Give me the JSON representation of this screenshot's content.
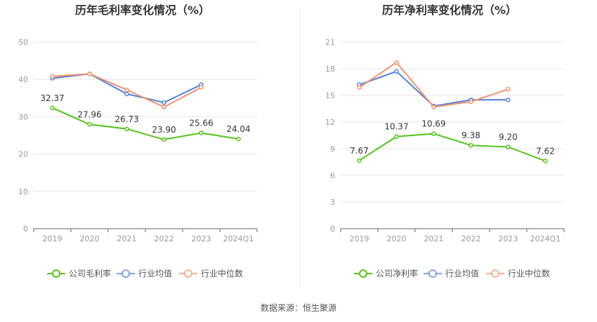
{
  "source_note": "数据来源：恒生聚源",
  "chart_data": [
    {
      "type": "line",
      "title": "历年毛利率变化情况（%）",
      "categories": [
        "2019",
        "2020",
        "2021",
        "2022",
        "2023",
        "2024Q1"
      ],
      "ylim": [
        0,
        50
      ],
      "yticks": [
        0,
        10,
        20,
        30,
        40,
        50
      ],
      "grid": true,
      "legend_position": "bottom",
      "series": [
        {
          "name": "公司毛利率",
          "color": "#52c41a",
          "values": [
            32.37,
            27.96,
            26.73,
            23.9,
            25.66,
            24.04
          ],
          "labels": [
            "32.37",
            "27.96",
            "26.73",
            "23.90",
            "25.66",
            "24.04"
          ]
        },
        {
          "name": "行业均值",
          "color": "#4f7fd8",
          "values": [
            40.3,
            41.5,
            36.1,
            33.8,
            38.6,
            null
          ]
        },
        {
          "name": "行业中位数",
          "color": "#f4916a",
          "values": [
            40.8,
            41.5,
            37.2,
            32.6,
            37.9,
            null
          ]
        }
      ]
    },
    {
      "type": "line",
      "title": "历年净利率变化情况（%）",
      "categories": [
        "2019",
        "2020",
        "2021",
        "2022",
        "2023",
        "2024Q1"
      ],
      "ylim": [
        0,
        21
      ],
      "yticks": [
        0,
        3,
        6,
        9,
        12,
        15,
        18,
        21
      ],
      "grid": true,
      "legend_position": "bottom",
      "series": [
        {
          "name": "公司净利率",
          "color": "#52c41a",
          "values": [
            7.67,
            10.37,
            10.69,
            9.38,
            9.2,
            7.62
          ],
          "labels": [
            "7.67",
            "10.37",
            "10.69",
            "9.38",
            "9.20",
            "7.62"
          ]
        },
        {
          "name": "行业均值",
          "color": "#4f7fd8",
          "values": [
            16.2,
            17.7,
            13.8,
            14.5,
            14.5,
            null
          ]
        },
        {
          "name": "行业中位数",
          "color": "#f4916a",
          "values": [
            15.9,
            18.7,
            13.7,
            14.3,
            15.7,
            null
          ]
        }
      ]
    }
  ]
}
